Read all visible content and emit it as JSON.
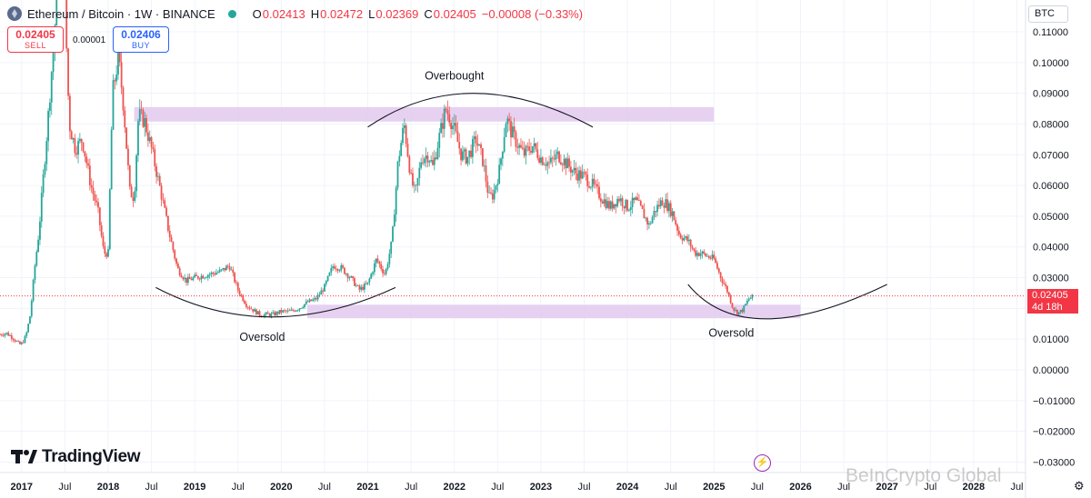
{
  "header": {
    "symbol": "Ethereum / Bitcoin · 1W · BINANCE",
    "icon": "ethereum-icon",
    "ohlc": {
      "o_label": "O",
      "o_value": "0.02413",
      "h_label": "H",
      "h_value": "0.02472",
      "l_label": "L",
      "l_value": "0.02369",
      "c_label": "C",
      "c_value": "0.02405",
      "change": "−0.00008 (−0.33%)"
    }
  },
  "trade": {
    "sell_price": "0.02405",
    "sell_label": "SELL",
    "spread": "0.00001",
    "buy_price": "0.02406",
    "buy_label": "BUY"
  },
  "price_axis": {
    "currency": "BTC",
    "last_price": "0.02405",
    "countdown": "4d 18h"
  },
  "logo_text": "TradingView",
  "watermark": "BeInCrypto Global",
  "colors": {
    "up": "#26a69a",
    "down": "#ef5350",
    "zone": "#e3c9ee",
    "last_price": "#f23645"
  },
  "chart_data": {
    "type": "candlestick",
    "pair": "ETH/BTC",
    "interval": "1W",
    "ylim": [
      -0.03,
      0.115
    ],
    "yticks": [
      0.11,
      0.1,
      0.09,
      0.08,
      0.07,
      0.06,
      0.05,
      0.04,
      0.03,
      0.02,
      0.01,
      0.0,
      -0.01,
      -0.02,
      -0.03
    ],
    "ytick_labels": [
      "0.11000",
      "0.10000",
      "0.09000",
      "0.08000",
      "0.07000",
      "0.06000",
      "0.05000",
      "0.04000",
      "0.03000",
      "0.02000",
      "0.01000",
      "0.00000",
      "−0.01000",
      "−0.02000",
      "−0.03000"
    ],
    "xlim": [
      2016.75,
      2028.6
    ],
    "xticks": [
      {
        "x": 2017.0,
        "label": "2017",
        "bold": true
      },
      {
        "x": 2017.5,
        "label": "Jul",
        "bold": false
      },
      {
        "x": 2018.0,
        "label": "2018",
        "bold": true
      },
      {
        "x": 2018.5,
        "label": "Jul",
        "bold": false
      },
      {
        "x": 2019.0,
        "label": "2019",
        "bold": true
      },
      {
        "x": 2019.5,
        "label": "Jul",
        "bold": false
      },
      {
        "x": 2020.0,
        "label": "2020",
        "bold": true
      },
      {
        "x": 2020.5,
        "label": "Jul",
        "bold": false
      },
      {
        "x": 2021.0,
        "label": "2021",
        "bold": true
      },
      {
        "x": 2021.5,
        "label": "Jul",
        "bold": false
      },
      {
        "x": 2022.0,
        "label": "2022",
        "bold": true
      },
      {
        "x": 2022.5,
        "label": "Jul",
        "bold": false
      },
      {
        "x": 2023.0,
        "label": "2023",
        "bold": true
      },
      {
        "x": 2023.5,
        "label": "Jul",
        "bold": false
      },
      {
        "x": 2024.0,
        "label": "2024",
        "bold": true
      },
      {
        "x": 2024.5,
        "label": "Jul",
        "bold": false
      },
      {
        "x": 2025.0,
        "label": "2025",
        "bold": true
      },
      {
        "x": 2025.5,
        "label": "Jul",
        "bold": false
      },
      {
        "x": 2026.0,
        "label": "2026",
        "bold": true
      },
      {
        "x": 2026.5,
        "label": "Jul",
        "bold": false
      },
      {
        "x": 2027.0,
        "label": "2027",
        "bold": true
      },
      {
        "x": 2027.5,
        "label": "Jul",
        "bold": false
      },
      {
        "x": 2028.0,
        "label": "2028",
        "bold": true
      },
      {
        "x": 2028.5,
        "label": "Jul",
        "bold": false
      }
    ],
    "grid": true,
    "price_path": [
      [
        2016.75,
        0.0115
      ],
      [
        2016.82,
        0.012
      ],
      [
        2016.9,
        0.0105
      ],
      [
        2016.97,
        0.0082
      ],
      [
        2017.0,
        0.0085
      ],
      [
        2017.05,
        0.011
      ],
      [
        2017.1,
        0.018
      ],
      [
        2017.15,
        0.033
      ],
      [
        2017.2,
        0.045
      ],
      [
        2017.3,
        0.08
      ],
      [
        2017.38,
        0.11
      ],
      [
        2017.45,
        0.145
      ],
      [
        2017.5,
        0.12
      ],
      [
        2017.55,
        0.08
      ],
      [
        2017.62,
        0.072
      ],
      [
        2017.7,
        0.075
      ],
      [
        2017.8,
        0.06
      ],
      [
        2017.88,
        0.052
      ],
      [
        2017.95,
        0.038
      ],
      [
        2018.0,
        0.038
      ],
      [
        2018.05,
        0.09
      ],
      [
        2018.12,
        0.102
      ],
      [
        2018.18,
        0.085
      ],
      [
        2018.25,
        0.058
      ],
      [
        2018.3,
        0.056
      ],
      [
        2018.35,
        0.083
      ],
      [
        2018.42,
        0.081
      ],
      [
        2018.5,
        0.072
      ],
      [
        2018.6,
        0.059
      ],
      [
        2018.7,
        0.045
      ],
      [
        2018.8,
        0.033
      ],
      [
        2018.9,
        0.029
      ],
      [
        2019.0,
        0.03
      ],
      [
        2019.15,
        0.031
      ],
      [
        2019.3,
        0.032
      ],
      [
        2019.4,
        0.034
      ],
      [
        2019.5,
        0.026
      ],
      [
        2019.6,
        0.021
      ],
      [
        2019.75,
        0.018
      ],
      [
        2019.9,
        0.018
      ],
      [
        2020.0,
        0.019
      ],
      [
        2020.1,
        0.019
      ],
      [
        2020.2,
        0.02
      ],
      [
        2020.3,
        0.022
      ],
      [
        2020.4,
        0.023
      ],
      [
        2020.5,
        0.027
      ],
      [
        2020.6,
        0.034
      ],
      [
        2020.7,
        0.033
      ],
      [
        2020.8,
        0.03
      ],
      [
        2020.9,
        0.026
      ],
      [
        2021.0,
        0.028
      ],
      [
        2021.1,
        0.036
      ],
      [
        2021.2,
        0.031
      ],
      [
        2021.28,
        0.042
      ],
      [
        2021.35,
        0.068
      ],
      [
        2021.42,
        0.08
      ],
      [
        2021.5,
        0.062
      ],
      [
        2021.55,
        0.057
      ],
      [
        2021.62,
        0.069
      ],
      [
        2021.7,
        0.07
      ],
      [
        2021.75,
        0.066
      ],
      [
        2021.82,
        0.075
      ],
      [
        2021.9,
        0.085
      ],
      [
        2021.95,
        0.082
      ],
      [
        2022.0,
        0.078
      ],
      [
        2022.08,
        0.07
      ],
      [
        2022.15,
        0.069
      ],
      [
        2022.25,
        0.075
      ],
      [
        2022.33,
        0.068
      ],
      [
        2022.4,
        0.056
      ],
      [
        2022.45,
        0.057
      ],
      [
        2022.52,
        0.065
      ],
      [
        2022.6,
        0.082
      ],
      [
        2022.65,
        0.078
      ],
      [
        2022.7,
        0.075
      ],
      [
        2022.8,
        0.07
      ],
      [
        2022.9,
        0.073
      ],
      [
        2023.0,
        0.069
      ],
      [
        2023.1,
        0.067
      ],
      [
        2023.2,
        0.07
      ],
      [
        2023.3,
        0.067
      ],
      [
        2023.4,
        0.064
      ],
      [
        2023.5,
        0.063
      ],
      [
        2023.6,
        0.06
      ],
      [
        2023.7,
        0.056
      ],
      [
        2023.8,
        0.053
      ],
      [
        2023.9,
        0.056
      ],
      [
        2024.0,
        0.053
      ],
      [
        2024.1,
        0.055
      ],
      [
        2024.18,
        0.051
      ],
      [
        2024.25,
        0.047
      ],
      [
        2024.32,
        0.052
      ],
      [
        2024.4,
        0.055
      ],
      [
        2024.45,
        0.054
      ],
      [
        2024.52,
        0.051
      ],
      [
        2024.6,
        0.044
      ],
      [
        2024.7,
        0.042
      ],
      [
        2024.78,
        0.038
      ],
      [
        2024.85,
        0.038
      ],
      [
        2024.92,
        0.037
      ],
      [
        2025.0,
        0.036
      ],
      [
        2025.08,
        0.03
      ],
      [
        2025.15,
        0.026
      ],
      [
        2025.22,
        0.02
      ],
      [
        2025.28,
        0.0185
      ],
      [
        2025.33,
        0.0195
      ],
      [
        2025.4,
        0.023
      ],
      [
        2025.46,
        0.0241
      ]
    ],
    "zones": [
      {
        "x0": 2018.3,
        "x1": 2025.0,
        "y0": 0.0808,
        "y1": 0.0855
      },
      {
        "x0": 2020.3,
        "x1": 2026.0,
        "y0": 0.0168,
        "y1": 0.0212
      }
    ],
    "arcs": [
      {
        "x0": 2018.55,
        "x1": 2021.32,
        "apex_x": 2019.85,
        "apex_y": 0.0172,
        "end_y": 0.0268
      },
      {
        "x0": 2021.0,
        "x1": 2023.6,
        "apex_x": 2022.15,
        "apex_y": 0.09,
        "end_y": 0.079
      },
      {
        "x0": 2024.7,
        "x1": 2027.0,
        "apex_x": 2025.35,
        "apex_y": 0.0166,
        "end_y": 0.0278
      }
    ],
    "annotations": [
      {
        "text": "Overbought",
        "x": 2022.0,
        "y": 0.0945
      },
      {
        "text": "Oversold",
        "x": 2019.78,
        "y": 0.0095
      },
      {
        "text": "Oversold",
        "x": 2025.2,
        "y": 0.0108
      }
    ],
    "last_price": 0.02405
  }
}
